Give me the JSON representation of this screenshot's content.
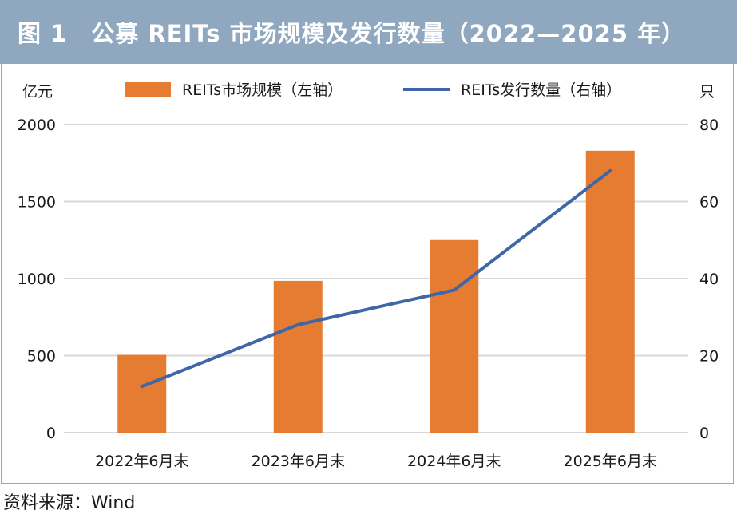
{
  "title": "图 1　公募 REITs 市场规模及发行数量（2022—2025 年）",
  "source": "资料来源：Wind",
  "colors": {
    "title_bg": "#8fa8bf",
    "bar": "#e67c32",
    "line": "#3f67a8",
    "grid": "#d9d9d9"
  },
  "chart_data": {
    "type": "bar",
    "categories": [
      "2022年6月末",
      "2023年6月末",
      "2024年6月末",
      "2025年6月末"
    ],
    "series": [
      {
        "name": "REITs市场规模（左轴）",
        "type": "bar",
        "axis": "left",
        "values": [
          505,
          985,
          1250,
          1830
        ]
      },
      {
        "name": "REITs发行数量（右轴）",
        "type": "line",
        "axis": "right",
        "values": [
          12,
          28,
          37,
          68
        ]
      }
    ],
    "ylabel_left": "亿元",
    "ylabel_right": "只",
    "ylim_left": [
      0,
      2000
    ],
    "ylim_right": [
      0,
      80
    ],
    "yticks_left": [
      "0",
      "500",
      "1000",
      "1500",
      "2000"
    ],
    "yticks_right": [
      "0",
      "20",
      "40",
      "60",
      "80"
    ],
    "grid": true,
    "legend_position": "top"
  }
}
